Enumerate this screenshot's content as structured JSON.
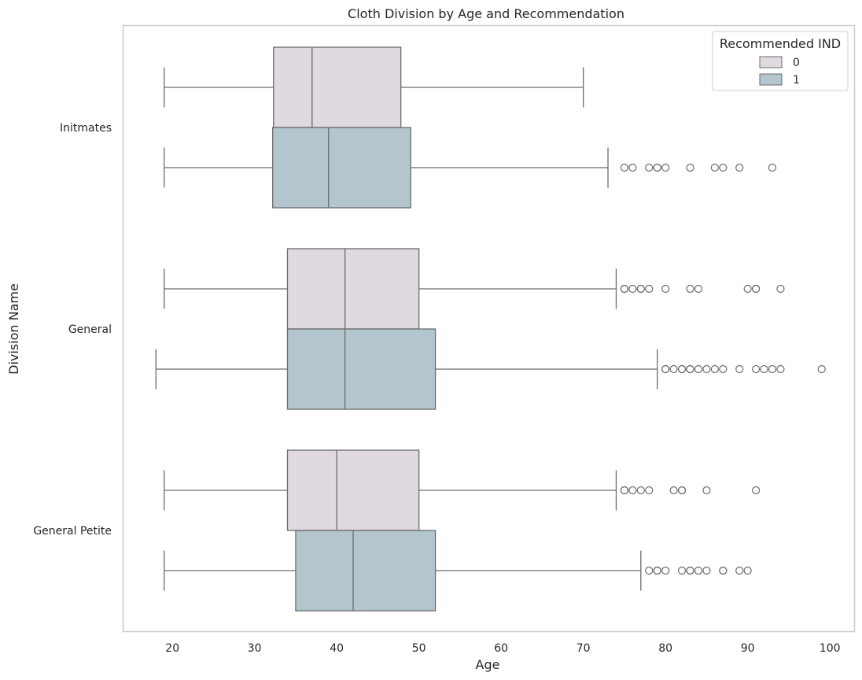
{
  "chart_data": {
    "type": "boxplot",
    "orientation": "horizontal",
    "title": "Cloth Division by Age and Recommendation",
    "xlabel": "Age",
    "ylabel": "Division Name",
    "xlim": [
      14,
      103
    ],
    "xticks": [
      20,
      30,
      40,
      50,
      60,
      70,
      80,
      90,
      100
    ],
    "grid": false,
    "categories": [
      "Initmates",
      "General",
      "General Petite"
    ],
    "legend": {
      "title": "Recommended IND",
      "placement": "top-right",
      "entries": [
        {
          "label": "0",
          "color": "#e0d9e0"
        },
        {
          "label": "1",
          "color": "#b3c5cd"
        }
      ]
    },
    "colors": {
      "edge": "#6b6b6b",
      "outlier_edge": "#6b6b6b",
      "frame": "#cccccc"
    },
    "groups": [
      {
        "category": "Initmates",
        "series": "0",
        "whisker_low": 19,
        "q1": 32.3,
        "median": 37,
        "q3": 47.8,
        "whisker_high": 70,
        "outliers": []
      },
      {
        "category": "Initmates",
        "series": "1",
        "whisker_low": 19,
        "q1": 32.2,
        "median": 39,
        "q3": 49,
        "whisker_high": 73,
        "outliers": [
          75,
          76,
          78,
          79,
          79,
          80,
          83,
          86,
          87,
          89,
          93
        ]
      },
      {
        "category": "General",
        "series": "0",
        "whisker_low": 19,
        "q1": 34,
        "median": 41,
        "q3": 50,
        "whisker_high": 74,
        "outliers": [
          75,
          75,
          76,
          77,
          77,
          78,
          80,
          83,
          84,
          90,
          91,
          91,
          94
        ]
      },
      {
        "category": "General",
        "series": "1",
        "whisker_low": 18,
        "q1": 34,
        "median": 41,
        "q3": 52,
        "whisker_high": 79,
        "outliers": [
          80,
          80,
          81,
          82,
          82,
          83,
          83,
          84,
          85,
          86,
          87,
          89,
          91,
          92,
          93,
          94,
          99
        ]
      },
      {
        "category": "General Petite",
        "series": "0",
        "whisker_low": 19,
        "q1": 34,
        "median": 40,
        "q3": 50,
        "whisker_high": 74,
        "outliers": [
          75,
          75,
          76,
          77,
          78,
          81,
          82,
          82,
          85,
          91
        ]
      },
      {
        "category": "General Petite",
        "series": "1",
        "whisker_low": 19,
        "q1": 35,
        "median": 42,
        "q3": 52,
        "whisker_high": 77,
        "outliers": [
          78,
          79,
          79,
          80,
          82,
          83,
          83,
          84,
          85,
          87,
          87,
          89,
          90
        ]
      }
    ]
  }
}
